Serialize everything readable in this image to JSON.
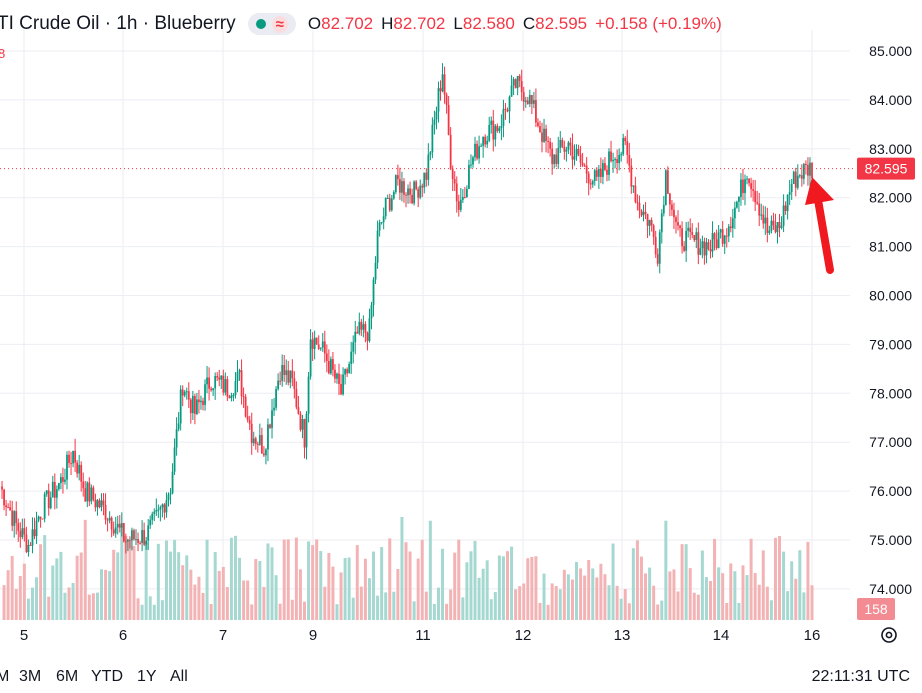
{
  "legend": {
    "title": "TI Crude Oil · 1h · Blueberry",
    "open_label": "O",
    "open": "82.702",
    "high_label": "H",
    "high": "82.702",
    "low_label": "L",
    "low": "82.580",
    "close_label": "C",
    "close": "82.595",
    "change": "+0.158 (+0.19%)",
    "subline": "8",
    "live_dot_icon": "live-dot-icon",
    "wave_icon": "wave-icon"
  },
  "price_badge": {
    "value": "82.595"
  },
  "volume_badge": {
    "value": "158"
  },
  "bottom": {
    "ranges": [
      "M",
      "3M",
      "6M",
      "YTD",
      "1Y",
      "All"
    ],
    "clock": "22:11:31 UTC"
  },
  "colors": {
    "up": "#089981",
    "down": "#f23645",
    "up_volume": "#a6d8d2",
    "down_volume": "#f3b3b5",
    "grid": "#eceef2",
    "annotation_arrow": "#f0191f"
  },
  "chart_data": {
    "type": "candlestick",
    "y_axis": {
      "ticks": [
        "85.000",
        "84.000",
        "83.000",
        "82.000",
        "81.000",
        "80.000",
        "79.000",
        "78.000",
        "77.000",
        "76.000",
        "75.000",
        "74.000"
      ],
      "ylim": [
        73.5,
        85.25
      ]
    },
    "x_axis": {
      "ticks": [
        "5",
        "6",
        "7",
        "9",
        "11",
        "12",
        "13",
        "14",
        "16"
      ]
    },
    "last_price": 82.595,
    "keypoints": [
      [
        0,
        76.1
      ],
      [
        8,
        75.3
      ],
      [
        14,
        74.9
      ],
      [
        20,
        75.6
      ],
      [
        30,
        76.2
      ],
      [
        36,
        76.8
      ],
      [
        42,
        76.0
      ],
      [
        52,
        75.6
      ],
      [
        62,
        75.0
      ],
      [
        72,
        75.1
      ],
      [
        78,
        75.5
      ],
      [
        84,
        76.1
      ],
      [
        90,
        78.2
      ],
      [
        96,
        77.6
      ],
      [
        104,
        78.3
      ],
      [
        112,
        78.1
      ],
      [
        118,
        78.3
      ],
      [
        124,
        77.2
      ],
      [
        130,
        76.9
      ],
      [
        138,
        78.5
      ],
      [
        144,
        78.2
      ],
      [
        150,
        77.1
      ],
      [
        153,
        79.2
      ],
      [
        160,
        78.8
      ],
      [
        168,
        78.0
      ],
      [
        176,
        79.2
      ],
      [
        182,
        79.3
      ],
      [
        186,
        81.2
      ],
      [
        190,
        81.8
      ],
      [
        196,
        82.3
      ],
      [
        204,
        82.1
      ],
      [
        210,
        82.5
      ],
      [
        218,
        84.6
      ],
      [
        222,
        82.8
      ],
      [
        226,
        81.8
      ],
      [
        232,
        82.7
      ],
      [
        238,
        83.3
      ],
      [
        246,
        83.5
      ],
      [
        254,
        84.3
      ],
      [
        260,
        84.1
      ],
      [
        268,
        83.2
      ],
      [
        272,
        82.8
      ],
      [
        280,
        83.1
      ],
      [
        286,
        82.7
      ],
      [
        294,
        82.3
      ],
      [
        302,
        82.9
      ],
      [
        308,
        83.0
      ],
      [
        314,
        81.9
      ],
      [
        320,
        81.5
      ],
      [
        324,
        80.9
      ],
      [
        328,
        82.5
      ],
      [
        334,
        81.2
      ],
      [
        342,
        81.1
      ],
      [
        350,
        81.0
      ],
      [
        358,
        81.4
      ],
      [
        364,
        82.0
      ],
      [
        368,
        82.6
      ],
      [
        372,
        82.1
      ],
      [
        378,
        81.3
      ],
      [
        384,
        81.4
      ],
      [
        390,
        82.3
      ],
      [
        394,
        82.5
      ],
      [
        398,
        82.6
      ]
    ],
    "volume_range": [
      0,
      158
    ]
  }
}
